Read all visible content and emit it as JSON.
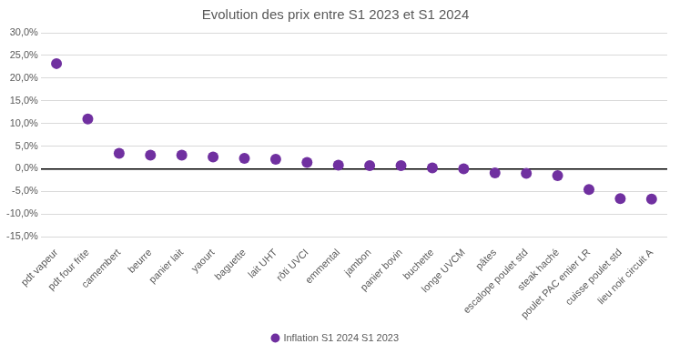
{
  "chart_data": {
    "type": "scatter",
    "title": "Evolution des prix entre S1 2023 et S1 2024",
    "categories": [
      "pdt vapeur",
      "pdt four frite",
      "camembert",
      "beurre",
      "panier lait",
      "yaourt",
      "baguette",
      "lait UHT",
      "rôti UVCI",
      "emmental",
      "jambon",
      "panier bovin",
      "buchette",
      "longe UVCM",
      "pâtes",
      "escalope poulet std",
      "steak haché",
      "poulet PAC entier LR",
      "cuisse poulet std",
      "lieu noir circuit A"
    ],
    "series": [
      {
        "name": "Inflation S1 2024 S1 2023",
        "color": "#7030a0",
        "marker": "circle",
        "values": [
          23.2,
          11.0,
          3.4,
          3.0,
          3.0,
          2.6,
          2.3,
          2.1,
          1.4,
          0.8,
          0.7,
          0.7,
          0.2,
          0.0,
          -0.9,
          -1.0,
          -1.5,
          -4.6,
          -6.6,
          -6.7
        ]
      }
    ],
    "ylim": [
      -15,
      30
    ],
    "yticks": [
      {
        "value": -15,
        "label": "-15,0%"
      },
      {
        "value": -10,
        "label": "-10,0%"
      },
      {
        "value": -5,
        "label": "-5,0%"
      },
      {
        "value": 0,
        "label": "0,0%"
      },
      {
        "value": 5,
        "label": "5,0%"
      },
      {
        "value": 10,
        "label": "10,0%"
      },
      {
        "value": 15,
        "label": "15,0%"
      },
      {
        "value": 20,
        "label": "20,0%"
      },
      {
        "value": 25,
        "label": "25,0%"
      },
      {
        "value": 30,
        "label": "30,0%"
      }
    ],
    "grid": true,
    "legend": "bottom"
  }
}
